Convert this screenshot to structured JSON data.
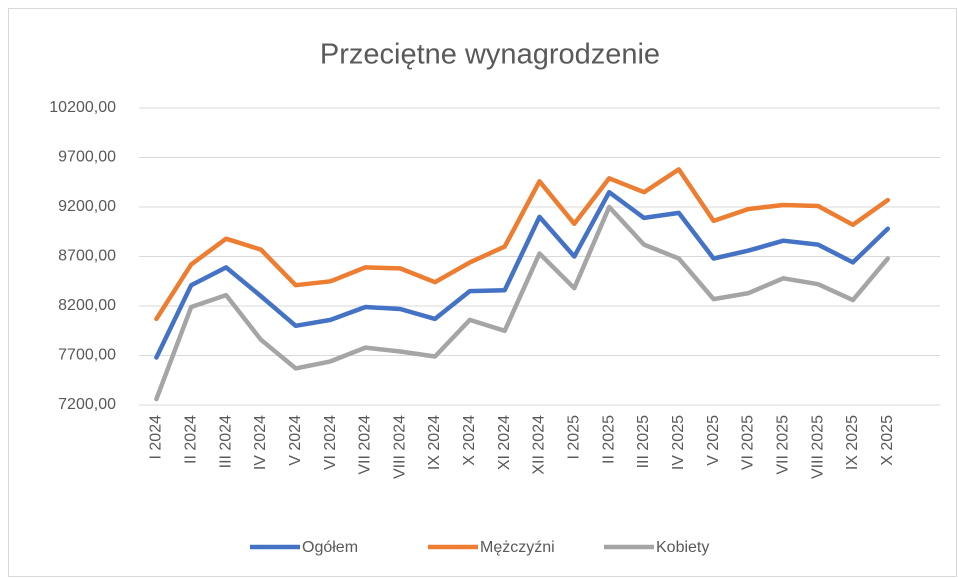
{
  "chart_data": {
    "type": "line",
    "title": "Przeciętne wynagrodzenie",
    "categories": [
      "I 2024",
      "II 2024",
      "III 2024",
      "IV 2024",
      "V 2024",
      "VI 2024",
      "VII 2024",
      "VIII 2024",
      "IX 2024",
      "X 2024",
      "XI 2024",
      "XII 2024",
      "I 2025",
      "II 2025",
      "III 2025",
      "IV 2025",
      "V 2025",
      "VI 2025",
      "VII 2025",
      "VIII 2025",
      "IX 2025",
      "X 2025",
      null
    ],
    "series": [
      {
        "name": "Ogółem",
        "color": "#4472c4",
        "values": [
          7680,
          8410,
          8590,
          8300,
          8000,
          8060,
          8190,
          8170,
          8070,
          8350,
          8360,
          9100,
          8700,
          9350,
          9090,
          9140,
          8680,
          8760,
          8860,
          8820,
          8640,
          8980,
          null
        ]
      },
      {
        "name": "Mężczyźni",
        "color": "#ed7d31",
        "values": [
          8070,
          8620,
          8880,
          8770,
          8410,
          8450,
          8590,
          8580,
          8440,
          8640,
          8800,
          9460,
          9030,
          9490,
          9350,
          9580,
          9060,
          9180,
          9220,
          9210,
          9020,
          9270,
          null
        ]
      },
      {
        "name": "Kobiety",
        "color": "#a5a5a5",
        "values": [
          7260,
          8190,
          8310,
          7860,
          7570,
          7640,
          7780,
          7740,
          7690,
          8060,
          7950,
          8730,
          8380,
          9200,
          8820,
          8680,
          8270,
          8330,
          8480,
          8420,
          8260,
          8680,
          null
        ]
      }
    ],
    "ylim": [
      7200,
      10200
    ],
    "yticks": [
      {
        "value": 7200,
        "label": "7200,00"
      },
      {
        "value": 7700,
        "label": "7700,00"
      },
      {
        "value": 8200,
        "label": "8200,00"
      },
      {
        "value": 8700,
        "label": "8700,00"
      },
      {
        "value": 9200,
        "label": "9200,00"
      },
      {
        "value": 9700,
        "label": "9700,00"
      },
      {
        "value": 10200,
        "label": "10200,00"
      }
    ],
    "grid": true,
    "legend": "bottom"
  }
}
